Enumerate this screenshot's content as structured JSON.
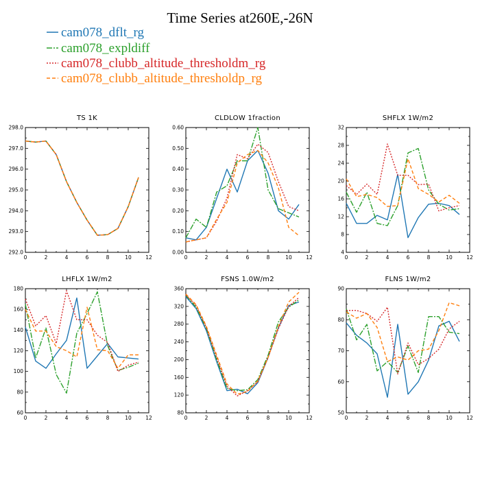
{
  "figure": {
    "title": "Time Series at260E,-26N"
  },
  "legend": [
    {
      "name": "cam078_dflt_rg",
      "color": "#1f77b4",
      "dash": "solid"
    },
    {
      "name": "cam078_expldiff",
      "color": "#2ca02c",
      "dash": "longdash"
    },
    {
      "name": "cam078_clubb_altitude_thresholdm_rg",
      "color": "#d62728",
      "dash": "dot"
    },
    {
      "name": "cam078_clubb_altitude_thresholdp_rg",
      "color": "#ff7f0e",
      "dash": "dash"
    }
  ],
  "chart_data": [
    {
      "type": "line",
      "title": "TS   1K",
      "x": [
        0,
        1,
        2,
        3,
        4,
        5,
        6,
        7,
        8,
        9,
        10,
        11
      ],
      "xlim": [
        0,
        12
      ],
      "xticks": [
        0,
        2,
        4,
        6,
        8,
        10,
        12
      ],
      "ylim": [
        292,
        298
      ],
      "yticks": [
        292,
        293,
        294,
        295,
        296,
        297,
        298
      ],
      "ytick_labels": [
        "292.0",
        "293.0",
        "294.0",
        "295.0",
        "296.0",
        "297.0",
        "298.0"
      ],
      "series": [
        {
          "name": "cam078_dflt_rg",
          "values": [
            297.35,
            297.3,
            297.35,
            296.7,
            295.4,
            294.4,
            293.55,
            292.82,
            292.85,
            293.15,
            294.2,
            295.6
          ]
        },
        {
          "name": "cam078_expldiff",
          "values": [
            297.35,
            297.3,
            297.35,
            296.7,
            295.4,
            294.4,
            293.55,
            292.82,
            292.85,
            293.15,
            294.2,
            295.6
          ]
        },
        {
          "name": "cam078_clubb_altitude_thresholdm_rg",
          "values": [
            297.35,
            297.3,
            297.35,
            296.7,
            295.4,
            294.4,
            293.55,
            292.82,
            292.85,
            293.15,
            294.2,
            295.6
          ]
        },
        {
          "name": "cam078_clubb_altitude_thresholdp_rg",
          "values": [
            297.35,
            297.3,
            297.35,
            296.7,
            295.4,
            294.4,
            293.55,
            292.82,
            292.85,
            293.15,
            294.2,
            295.6
          ]
        }
      ]
    },
    {
      "type": "line",
      "title": "CLDLOW   1fraction",
      "x": [
        0,
        1,
        2,
        3,
        4,
        5,
        6,
        7,
        8,
        9,
        10,
        11
      ],
      "xlim": [
        0,
        12
      ],
      "xticks": [
        0,
        2,
        4,
        6,
        8,
        10,
        12
      ],
      "ylim": [
        0,
        0.6
      ],
      "yticks": [
        0,
        0.1,
        0.2,
        0.3,
        0.4,
        0.5,
        0.6
      ],
      "ytick_labels": [
        "0.00",
        "0.10",
        "0.20",
        "0.30",
        "0.40",
        "0.50",
        "0.60"
      ],
      "series": [
        {
          "name": "cam078_dflt_rg",
          "values": [
            0.07,
            0.06,
            0.12,
            0.26,
            0.4,
            0.29,
            0.44,
            0.49,
            0.38,
            0.2,
            0.16,
            0.23
          ]
        },
        {
          "name": "cam078_expldiff",
          "values": [
            0.07,
            0.16,
            0.12,
            0.29,
            0.32,
            0.44,
            0.44,
            0.6,
            0.3,
            0.21,
            0.19,
            0.17
          ]
        },
        {
          "name": "cam078_clubb_altitude_thresholdm_rg",
          "values": [
            0.05,
            0.06,
            0.07,
            0.15,
            0.26,
            0.47,
            0.45,
            0.52,
            0.48,
            0.34,
            0.22,
            0.2
          ]
        },
        {
          "name": "cam078_clubb_altitude_thresholdp_rg",
          "values": [
            0.05,
            0.06,
            0.07,
            0.16,
            0.24,
            0.43,
            0.47,
            0.49,
            0.43,
            0.31,
            0.12,
            0.08
          ]
        }
      ]
    },
    {
      "type": "line",
      "title": "SHFLX   1W/m2",
      "x": [
        0,
        1,
        2,
        3,
        4,
        5,
        6,
        7,
        8,
        9,
        10,
        11
      ],
      "xlim": [
        0,
        12
      ],
      "xticks": [
        0,
        2,
        4,
        6,
        8,
        10,
        12
      ],
      "ylim": [
        4,
        32
      ],
      "yticks": [
        4,
        8,
        12,
        16,
        20,
        24,
        28,
        32
      ],
      "ytick_labels": [
        "4",
        "8",
        "12",
        "16",
        "20",
        "24",
        "28",
        "32"
      ],
      "series": [
        {
          "name": "cam078_dflt_rg",
          "values": [
            15.0,
            10.5,
            10.5,
            12.3,
            11.3,
            21.5,
            7.3,
            11.8,
            14.8,
            15.0,
            14.5,
            12.5
          ]
        },
        {
          "name": "cam078_expldiff",
          "values": [
            17.5,
            13.0,
            17.5,
            10.5,
            10.0,
            14.5,
            26.3,
            27.3,
            18.0,
            14.8,
            13.5,
            13.8
          ]
        },
        {
          "name": "cam078_clubb_altitude_thresholdm_rg",
          "values": [
            19.0,
            17.0,
            19.3,
            17.0,
            28.3,
            21.3,
            21.3,
            19.2,
            19.3,
            13.3,
            14.0,
            14.5
          ]
        },
        {
          "name": "cam078_clubb_altitude_thresholdp_rg",
          "values": [
            20.5,
            16.5,
            17.0,
            16.3,
            14.3,
            14.5,
            25.0,
            18.3,
            17.0,
            15.3,
            16.8,
            15.0
          ]
        }
      ]
    },
    {
      "type": "line",
      "title": "LHFLX   1W/m2",
      "x": [
        0,
        1,
        2,
        3,
        4,
        5,
        6,
        7,
        8,
        9,
        10,
        11
      ],
      "xlim": [
        0,
        12
      ],
      "xticks": [
        0,
        2,
        4,
        6,
        8,
        10,
        12
      ],
      "ylim": [
        60,
        180
      ],
      "yticks": [
        60,
        80,
        100,
        120,
        140,
        160,
        180
      ],
      "ytick_labels": [
        "60",
        "80",
        "100",
        "120",
        "140",
        "160",
        "180"
      ],
      "series": [
        {
          "name": "cam078_dflt_rg",
          "values": [
            143,
            110,
            103,
            117,
            130,
            171,
            103,
            115,
            127,
            114,
            113,
            112
          ]
        },
        {
          "name": "cam078_expldiff",
          "values": [
            165,
            113,
            142,
            97,
            79,
            137,
            156,
            177,
            125,
            101,
            104,
            108
          ]
        },
        {
          "name": "cam078_clubb_altitude_thresholdm_rg",
          "values": [
            170,
            144,
            154,
            127,
            178,
            150,
            150,
            135,
            128,
            100,
            106,
            109
          ]
        },
        {
          "name": "cam078_clubb_altitude_thresholdp_rg",
          "values": [
            160,
            139,
            139,
            124,
            120,
            114,
            162,
            121,
            120,
            103,
            116,
            116
          ]
        }
      ]
    },
    {
      "type": "line",
      "title": "FSNS   1.0W/m2",
      "x": [
        0,
        1,
        2,
        3,
        4,
        5,
        6,
        7,
        8,
        9,
        10,
        11
      ],
      "xlim": [
        0,
        12
      ],
      "xticks": [
        0,
        2,
        4,
        6,
        8,
        10,
        12
      ],
      "ylim": [
        80,
        360
      ],
      "yticks": [
        80,
        120,
        160,
        200,
        240,
        280,
        320,
        360
      ],
      "ytick_labels": [
        "80",
        "120",
        "160",
        "200",
        "240",
        "280",
        "320",
        "360"
      ],
      "series": [
        {
          "name": "cam078_dflt_rg",
          "values": [
            342,
            315,
            265,
            195,
            130,
            133,
            123,
            148,
            205,
            272,
            322,
            330
          ]
        },
        {
          "name": "cam078_expldiff",
          "values": [
            345,
            318,
            270,
            200,
            135,
            130,
            132,
            155,
            210,
            285,
            318,
            335
          ]
        },
        {
          "name": "cam078_clubb_altitude_thresholdm_rg",
          "values": [
            346,
            322,
            272,
            205,
            140,
            118,
            130,
            150,
            205,
            270,
            320,
            340
          ]
        },
        {
          "name": "cam078_clubb_altitude_thresholdp_rg",
          "values": [
            348,
            324,
            275,
            210,
            145,
            122,
            128,
            152,
            205,
            275,
            330,
            352
          ]
        }
      ]
    },
    {
      "type": "line",
      "title": "FLNS   1W/m2",
      "x": [
        0,
        1,
        2,
        3,
        4,
        5,
        6,
        7,
        8,
        9,
        10,
        11
      ],
      "xlim": [
        0,
        12
      ],
      "xticks": [
        0,
        2,
        4,
        6,
        8,
        10,
        12
      ],
      "ylim": [
        50,
        90
      ],
      "yticks": [
        50,
        60,
        70,
        80,
        90
      ],
      "ytick_labels": [
        "50",
        "60",
        "70",
        "80",
        "90"
      ],
      "series": [
        {
          "name": "cam078_dflt_rg",
          "values": [
            79,
            75,
            72.5,
            69,
            55,
            78.5,
            56,
            60,
            67,
            78,
            79.5,
            73
          ]
        },
        {
          "name": "cam078_expldiff",
          "values": [
            83.5,
            73.5,
            78.5,
            63.5,
            66.5,
            63,
            71.5,
            63,
            81,
            81,
            76,
            75.5
          ]
        },
        {
          "name": "cam078_clubb_altitude_thresholdm_rg",
          "values": [
            83,
            83,
            82,
            79.5,
            84,
            62.5,
            72.5,
            65.5,
            67.5,
            70.5,
            77,
            79.5
          ]
        },
        {
          "name": "cam078_clubb_altitude_thresholdp_rg",
          "values": [
            82.5,
            80.5,
            82,
            77.5,
            66.5,
            68,
            67,
            70,
            70.5,
            76.5,
            85.5,
            84.5
          ]
        }
      ]
    }
  ]
}
